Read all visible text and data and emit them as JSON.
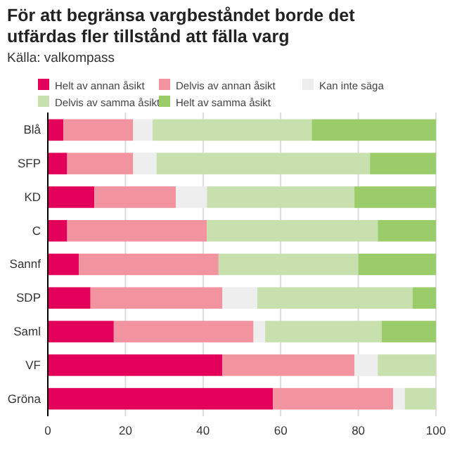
{
  "chart_data": {
    "type": "bar",
    "orientation": "horizontal",
    "stacked": true,
    "title": "För att begränsa vargbeståndet borde det utfärdas fler tillstånd att fälla varg",
    "subtitle": "Källa: valkompass",
    "categories": [
      "Blå",
      "SFP",
      "KD",
      "C",
      "Sannf",
      "SDP",
      "Saml",
      "VF",
      "Gröna"
    ],
    "series": [
      {
        "name": "Helt av annan åsikt",
        "color": "#e2005a",
        "values": [
          4,
          5,
          12,
          5,
          8,
          11,
          17,
          45,
          58
        ]
      },
      {
        "name": "Delvis av annan åsikt",
        "color": "#f293a0",
        "values": [
          18,
          17,
          21,
          36,
          36,
          34,
          36,
          34,
          31
        ]
      },
      {
        "name": "Kan inte säga",
        "color": "#eeeeee",
        "values": [
          5,
          6,
          8,
          0,
          0,
          9,
          3,
          6,
          3
        ]
      },
      {
        "name": "Delvis av samma åsikt",
        "color": "#c8dfae",
        "values": [
          41,
          55,
          38,
          44,
          36,
          40,
          30,
          15,
          8
        ]
      },
      {
        "name": "Helt av samma åsikt",
        "color": "#9bcc6a",
        "values": [
          32,
          17,
          21,
          15,
          20,
          6,
          14,
          0,
          0
        ]
      }
    ],
    "xlim": [
      0,
      100
    ],
    "xticks": [
      0,
      20,
      40,
      60,
      80,
      100
    ],
    "grid": "x",
    "legend": "top"
  }
}
